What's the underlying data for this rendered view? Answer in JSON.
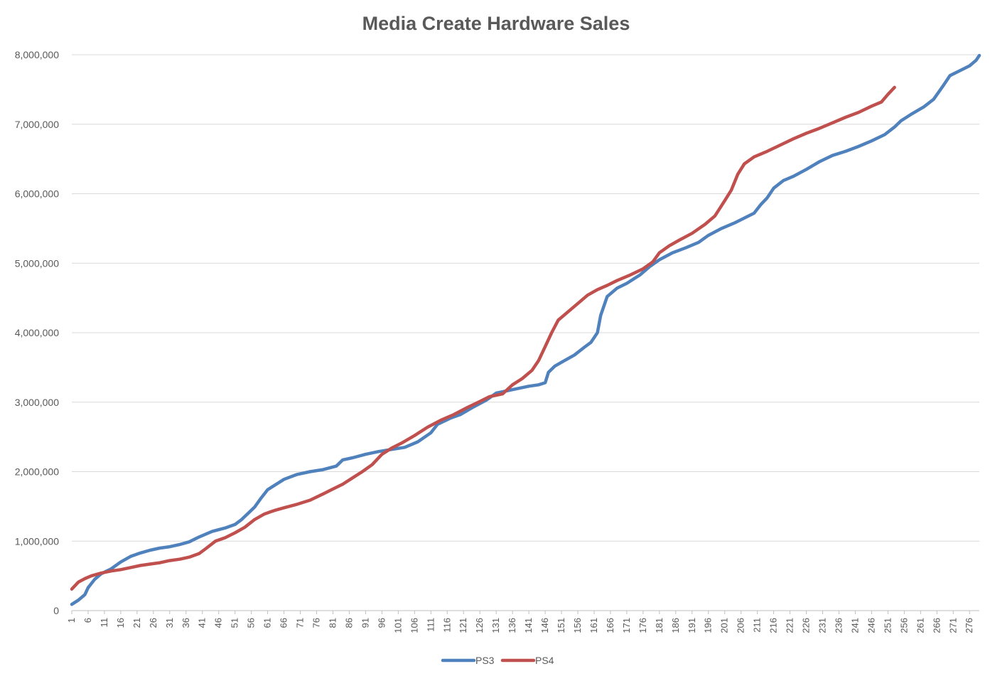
{
  "chart_data": {
    "type": "line",
    "title": "Media Create Hardware Sales",
    "xlabel": "",
    "ylabel": "",
    "ylim": [
      0,
      8000000
    ],
    "yticks": [
      0,
      1000000,
      2000000,
      3000000,
      4000000,
      5000000,
      6000000,
      7000000,
      8000000
    ],
    "ytick_labels": [
      "0",
      "1,000,000",
      "2,000,000",
      "3,000,000",
      "4,000,000",
      "5,000,000",
      "6,000,000",
      "7,000,000",
      "8,000,000"
    ],
    "xlim": [
      1,
      279
    ],
    "xtick_labels": [
      "1",
      "6",
      "11",
      "16",
      "21",
      "26",
      "31",
      "36",
      "41",
      "46",
      "51",
      "56",
      "61",
      "66",
      "71",
      "76",
      "81",
      "86",
      "91",
      "96",
      "101",
      "106",
      "111",
      "116",
      "121",
      "126",
      "131",
      "136",
      "141",
      "146",
      "151",
      "156",
      "161",
      "166",
      "171",
      "176",
      "181",
      "186",
      "191",
      "196",
      "201",
      "206",
      "211",
      "216",
      "221",
      "226",
      "231",
      "236",
      "241",
      "246",
      "251",
      "256",
      "261",
      "266",
      "271",
      "276"
    ],
    "grid": true,
    "legend_position": "bottom",
    "series": [
      {
        "name": "PS3",
        "color": "#4f81bd",
        "points": [
          [
            1,
            90000
          ],
          [
            3,
            150000
          ],
          [
            5,
            230000
          ],
          [
            6,
            330000
          ],
          [
            8,
            450000
          ],
          [
            10,
            530000
          ],
          [
            13,
            600000
          ],
          [
            16,
            700000
          ],
          [
            19,
            780000
          ],
          [
            22,
            830000
          ],
          [
            25,
            870000
          ],
          [
            28,
            900000
          ],
          [
            31,
            920000
          ],
          [
            34,
            950000
          ],
          [
            37,
            990000
          ],
          [
            40,
            1060000
          ],
          [
            44,
            1140000
          ],
          [
            48,
            1190000
          ],
          [
            51,
            1240000
          ],
          [
            53,
            1310000
          ],
          [
            55,
            1400000
          ],
          [
            57,
            1490000
          ],
          [
            59,
            1620000
          ],
          [
            61,
            1740000
          ],
          [
            64,
            1830000
          ],
          [
            66,
            1890000
          ],
          [
            70,
            1960000
          ],
          [
            74,
            2000000
          ],
          [
            78,
            2030000
          ],
          [
            82,
            2080000
          ],
          [
            84,
            2170000
          ],
          [
            87,
            2200000
          ],
          [
            91,
            2250000
          ],
          [
            95,
            2290000
          ],
          [
            99,
            2320000
          ],
          [
            103,
            2350000
          ],
          [
            107,
            2430000
          ],
          [
            111,
            2560000
          ],
          [
            113,
            2680000
          ],
          [
            117,
            2770000
          ],
          [
            120,
            2820000
          ],
          [
            124,
            2930000
          ],
          [
            128,
            3030000
          ],
          [
            131,
            3130000
          ],
          [
            134,
            3160000
          ],
          [
            138,
            3200000
          ],
          [
            141,
            3230000
          ],
          [
            144,
            3250000
          ],
          [
            146,
            3280000
          ],
          [
            147,
            3430000
          ],
          [
            149,
            3520000
          ],
          [
            152,
            3600000
          ],
          [
            155,
            3680000
          ],
          [
            158,
            3790000
          ],
          [
            160,
            3860000
          ],
          [
            162,
            4000000
          ],
          [
            163,
            4250000
          ],
          [
            165,
            4520000
          ],
          [
            168,
            4640000
          ],
          [
            171,
            4710000
          ],
          [
            175,
            4830000
          ],
          [
            178,
            4950000
          ],
          [
            181,
            5050000
          ],
          [
            185,
            5150000
          ],
          [
            189,
            5220000
          ],
          [
            193,
            5300000
          ],
          [
            196,
            5400000
          ],
          [
            200,
            5500000
          ],
          [
            204,
            5580000
          ],
          [
            207,
            5650000
          ],
          [
            210,
            5720000
          ],
          [
            212,
            5840000
          ],
          [
            214,
            5940000
          ],
          [
            216,
            6080000
          ],
          [
            219,
            6190000
          ],
          [
            222,
            6250000
          ],
          [
            226,
            6350000
          ],
          [
            230,
            6460000
          ],
          [
            234,
            6550000
          ],
          [
            238,
            6610000
          ],
          [
            242,
            6680000
          ],
          [
            246,
            6760000
          ],
          [
            250,
            6850000
          ],
          [
            253,
            6960000
          ],
          [
            255,
            7050000
          ],
          [
            258,
            7140000
          ],
          [
            262,
            7250000
          ],
          [
            265,
            7360000
          ],
          [
            268,
            7560000
          ],
          [
            270,
            7700000
          ],
          [
            273,
            7770000
          ],
          [
            276,
            7840000
          ],
          [
            278,
            7920000
          ],
          [
            279,
            7990000
          ]
        ]
      },
      {
        "name": "PS4",
        "color": "#c0504d",
        "points": [
          [
            1,
            310000
          ],
          [
            3,
            410000
          ],
          [
            5,
            460000
          ],
          [
            7,
            500000
          ],
          [
            10,
            540000
          ],
          [
            13,
            570000
          ],
          [
            16,
            590000
          ],
          [
            19,
            620000
          ],
          [
            22,
            650000
          ],
          [
            25,
            670000
          ],
          [
            28,
            690000
          ],
          [
            31,
            720000
          ],
          [
            34,
            740000
          ],
          [
            37,
            770000
          ],
          [
            40,
            820000
          ],
          [
            42,
            890000
          ],
          [
            45,
            1000000
          ],
          [
            48,
            1050000
          ],
          [
            51,
            1120000
          ],
          [
            54,
            1200000
          ],
          [
            57,
            1310000
          ],
          [
            60,
            1390000
          ],
          [
            63,
            1440000
          ],
          [
            66,
            1480000
          ],
          [
            70,
            1530000
          ],
          [
            74,
            1590000
          ],
          [
            78,
            1680000
          ],
          [
            81,
            1750000
          ],
          [
            84,
            1820000
          ],
          [
            87,
            1910000
          ],
          [
            90,
            2000000
          ],
          [
            93,
            2100000
          ],
          [
            96,
            2250000
          ],
          [
            99,
            2340000
          ],
          [
            102,
            2410000
          ],
          [
            106,
            2520000
          ],
          [
            110,
            2640000
          ],
          [
            114,
            2740000
          ],
          [
            118,
            2820000
          ],
          [
            122,
            2920000
          ],
          [
            126,
            3010000
          ],
          [
            129,
            3080000
          ],
          [
            133,
            3120000
          ],
          [
            136,
            3250000
          ],
          [
            139,
            3340000
          ],
          [
            142,
            3460000
          ],
          [
            144,
            3600000
          ],
          [
            146,
            3800000
          ],
          [
            148,
            4000000
          ],
          [
            150,
            4180000
          ],
          [
            153,
            4300000
          ],
          [
            156,
            4420000
          ],
          [
            159,
            4540000
          ],
          [
            162,
            4620000
          ],
          [
            165,
            4680000
          ],
          [
            168,
            4750000
          ],
          [
            172,
            4830000
          ],
          [
            176,
            4920000
          ],
          [
            179,
            5020000
          ],
          [
            181,
            5150000
          ],
          [
            184,
            5250000
          ],
          [
            187,
            5330000
          ],
          [
            191,
            5430000
          ],
          [
            195,
            5560000
          ],
          [
            198,
            5680000
          ],
          [
            201,
            5900000
          ],
          [
            203,
            6050000
          ],
          [
            205,
            6280000
          ],
          [
            207,
            6430000
          ],
          [
            210,
            6530000
          ],
          [
            214,
            6610000
          ],
          [
            218,
            6700000
          ],
          [
            222,
            6790000
          ],
          [
            226,
            6870000
          ],
          [
            230,
            6940000
          ],
          [
            234,
            7020000
          ],
          [
            238,
            7100000
          ],
          [
            242,
            7170000
          ],
          [
            246,
            7260000
          ],
          [
            249,
            7320000
          ],
          [
            251,
            7430000
          ],
          [
            253,
            7530000
          ]
        ]
      }
    ]
  }
}
